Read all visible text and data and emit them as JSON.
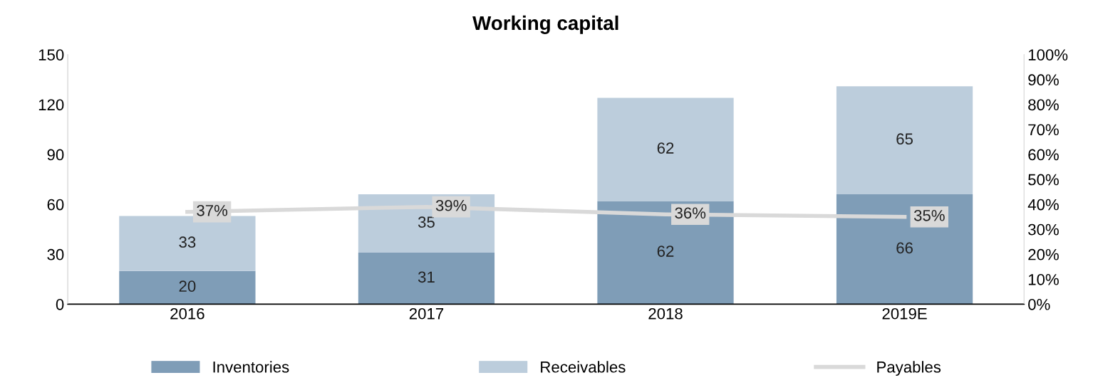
{
  "chart_data": {
    "type": "bar",
    "title": "Working capital",
    "categories": [
      "2016",
      "2017",
      "2018",
      "2019E"
    ],
    "stacked": true,
    "series": [
      {
        "name": "Inventories",
        "color": "#7f9db7",
        "values": [
          20,
          31,
          62,
          66
        ]
      },
      {
        "name": "Receivables",
        "color": "#bccddc",
        "values": [
          33,
          35,
          62,
          65
        ]
      },
      {
        "name": "Payables",
        "type": "line",
        "axis": "y2",
        "color": "#d9d9d9",
        "values": [
          37,
          39,
          36,
          35
        ],
        "value_labels": [
          "37%",
          "39%",
          "36%",
          "35%"
        ]
      }
    ],
    "data_labels": true,
    "ylim": [
      0,
      150
    ],
    "yticks": [
      0,
      30,
      60,
      90,
      120,
      150
    ],
    "y2lim": [
      0,
      100
    ],
    "y2ticks": [
      {
        "value": 0,
        "label": "0%"
      },
      {
        "value": 10,
        "label": "10%"
      },
      {
        "value": 20,
        "label": "20%"
      },
      {
        "value": 30,
        "label": "30%"
      },
      {
        "value": 40,
        "label": "40%"
      },
      {
        "value": 50,
        "label": "50%"
      },
      {
        "value": 60,
        "label": "60%"
      },
      {
        "value": 70,
        "label": "70%"
      },
      {
        "value": 80,
        "label": "80%"
      },
      {
        "value": 90,
        "label": "90%"
      },
      {
        "value": 100,
        "label": "100%"
      }
    ],
    "grid": false,
    "legend": "bottom",
    "line_style": "solid"
  }
}
